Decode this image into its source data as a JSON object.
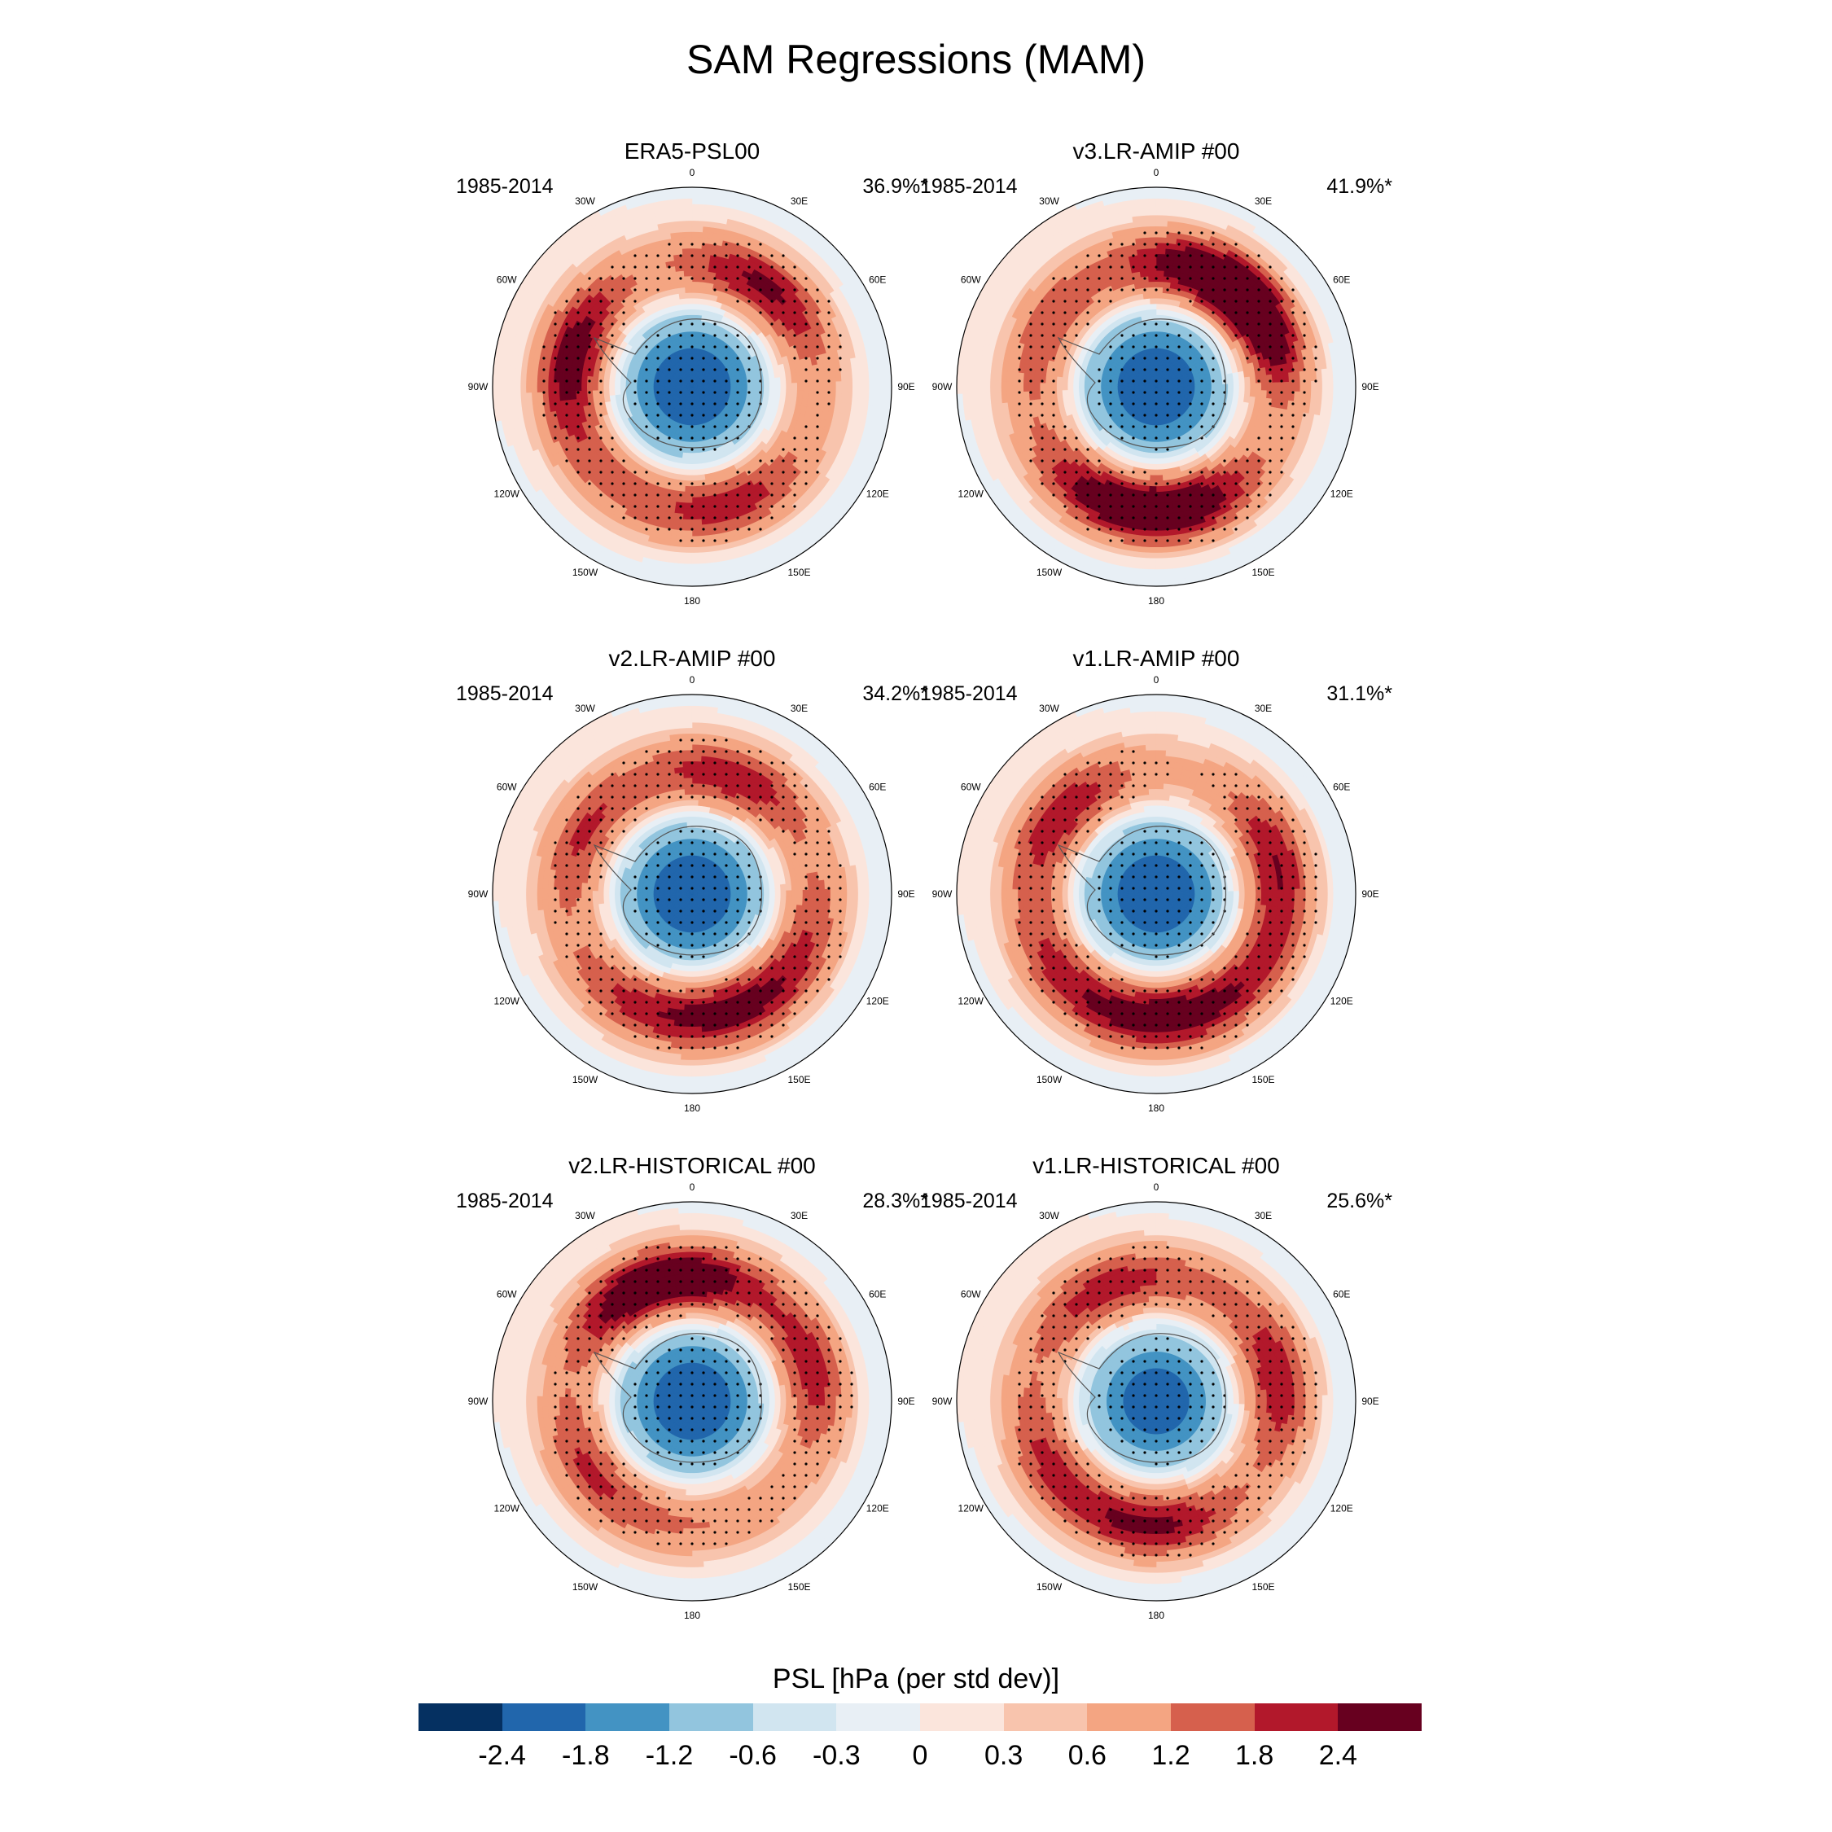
{
  "figure": {
    "title": "SAM Regressions (MAM)"
  },
  "longitude_labels": [
    "0",
    "30E",
    "60E",
    "90E",
    "120E",
    "150E",
    "180",
    "150W",
    "120W",
    "90W",
    "60W",
    "30W"
  ],
  "panels": [
    {
      "title": "ERA5-PSL00",
      "years": "1985-2014",
      "variance": "36.9%*",
      "features": {
        "center_min": -2.4,
        "lobes": [
          [
            285,
            2.4
          ],
          [
            160,
            1.6
          ],
          [
            45,
            1.2
          ],
          [
            25,
            1.0
          ],
          [
            220,
            0.8
          ]
        ]
      }
    },
    {
      "title": "v3.LR-AMIP  #00",
      "years": "1985-2014",
      "variance": "41.9%*",
      "features": {
        "center_min": -2.4,
        "lobes": [
          [
            170,
            2.6
          ],
          [
            55,
            2.6
          ],
          [
            20,
            2.0
          ],
          [
            210,
            1.6
          ],
          [
            300,
            1.2
          ]
        ]
      }
    },
    {
      "title": "v2.LR-AMIP  #00",
      "years": "1985-2014",
      "variance": "34.2%*",
      "features": {
        "center_min": -2.4,
        "lobes": [
          [
            160,
            2.0
          ],
          [
            20,
            1.8
          ],
          [
            300,
            1.4
          ],
          [
            110,
            1.0
          ],
          [
            210,
            1.2
          ]
        ]
      }
    },
    {
      "title": "v1.LR-AMIP  #00",
      "years": "1985-2014",
      "variance": "31.1%*",
      "features": {
        "center_min": -2.4,
        "lobes": [
          [
            175,
            2.2
          ],
          [
            310,
            1.8
          ],
          [
            75,
            1.8
          ],
          [
            230,
            1.4
          ],
          [
            130,
            1.0
          ]
        ]
      }
    },
    {
      "title": "v2.LR-HISTORICAL  #00",
      "years": "1985-2014",
      "variance": "28.3%*",
      "features": {
        "center_min": -2.4,
        "lobes": [
          [
            0,
            1.9
          ],
          [
            330,
            1.8
          ],
          [
            75,
            1.6
          ],
          [
            235,
            1.4
          ],
          [
            170,
            0.6
          ]
        ]
      }
    },
    {
      "title": "v1.LR-HISTORICAL  #00",
      "years": "1985-2014",
      "variance": "25.6%*",
      "features": {
        "center_min": -2.2,
        "lobes": [
          [
            180,
            2.0
          ],
          [
            80,
            1.8
          ],
          [
            330,
            1.4
          ],
          [
            240,
            1.4
          ],
          [
            10,
            0.6
          ]
        ]
      }
    }
  ],
  "colorbar": {
    "title": "PSL [hPa (per std dev)]",
    "ticks": [
      "-2.4",
      "-1.8",
      "-1.2",
      "-0.6",
      "-0.3",
      "0",
      "0.3",
      "0.6",
      "1.2",
      "1.8",
      "2.4"
    ],
    "levels": [
      -2.4,
      -1.8,
      -1.2,
      -0.6,
      -0.3,
      0,
      0.3,
      0.6,
      1.2,
      1.8,
      2.4
    ],
    "colors": [
      "#053061",
      "#2166ac",
      "#4393c3",
      "#92c5de",
      "#d1e5f0",
      "#e8eff5",
      "#fbe5dc",
      "#f8c4ad",
      "#f4a582",
      "#d6604d",
      "#b2182b",
      "#67001f"
    ]
  }
}
